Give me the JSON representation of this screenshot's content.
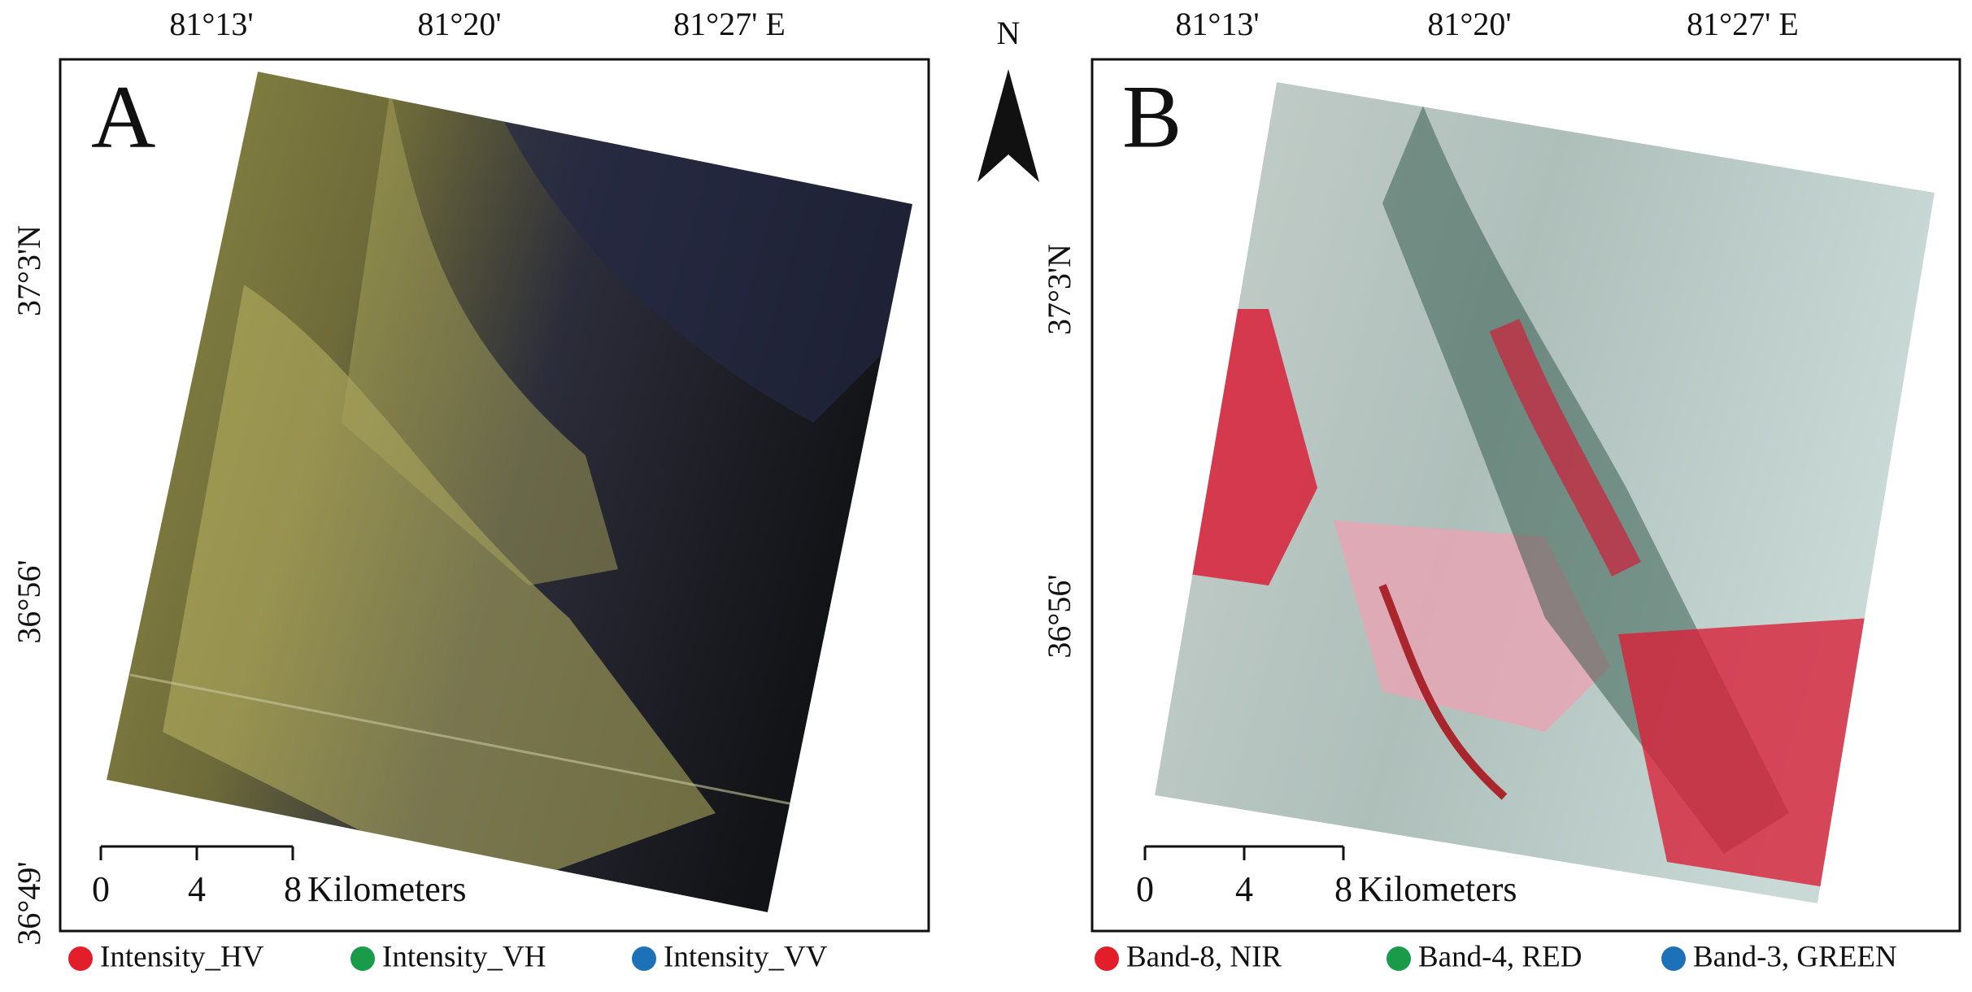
{
  "north": "N",
  "panels": [
    {
      "label": "A",
      "lon_labels": [
        "81°13'",
        "81°20'",
        "81°27' E"
      ],
      "lat_labels": [
        "37°3'N",
        "36°56'",
        "36°49'"
      ],
      "scale_labels": [
        "0",
        "4",
        "8"
      ],
      "scale_unit": "Kilometers",
      "legend": [
        {
          "name": "Intensity_HV",
          "color": "#e31e2b"
        },
        {
          "name": "Intensity_VH",
          "color": "#1a9b4a"
        },
        {
          "name": "Intensity_VV",
          "color": "#1d71b8"
        }
      ]
    },
    {
      "label": "B",
      "lon_labels": [
        "81°13'",
        "81°20'",
        "81°27' E"
      ],
      "lat_labels": [
        "37°3'N",
        "36°56'"
      ],
      "scale_labels": [
        "0",
        "4",
        "8"
      ],
      "scale_unit": "Kilometers",
      "legend": [
        {
          "name": "Band-8, NIR",
          "color": "#e31e2b"
        },
        {
          "name": "Band-4, RED",
          "color": "#1a9b4a"
        },
        {
          "name": "Band-3, GREEN",
          "color": "#1d71b8"
        }
      ]
    }
  ]
}
